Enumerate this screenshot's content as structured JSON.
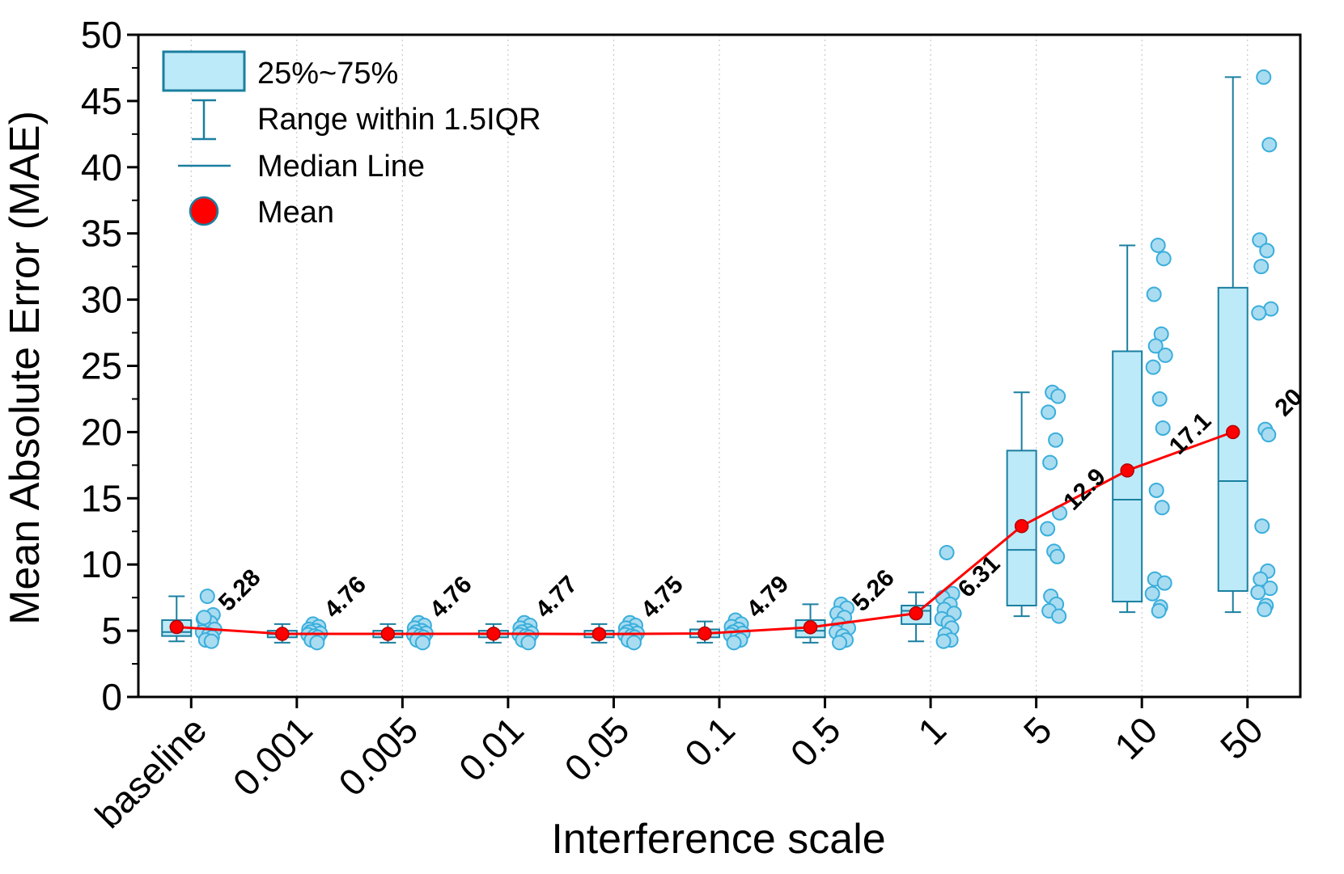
{
  "chart_data": {
    "type": "box",
    "title": "",
    "xlabel": "Interference scale",
    "ylabel": "Mean Absolute Error (MAE)",
    "ylim": [
      0,
      50
    ],
    "yticks": [
      0,
      5,
      10,
      15,
      20,
      25,
      30,
      35,
      40,
      45,
      50
    ],
    "grid": "vertical dotted lines at category ticks",
    "legend_position": "top-left",
    "legend": {
      "box": "25%~75%",
      "whisker": "Range within 1.5IQR",
      "median": "Median Line",
      "mean": "Mean"
    },
    "colors": {
      "box_fill": "#bdeaf8",
      "box_stroke": "#1a7fa0",
      "point_fill": "#a9dcf0",
      "point_stroke": "#3aaedc",
      "mean": "#ff0000",
      "mean_line": "#ff0000"
    },
    "categories": [
      {
        "label": "baseline",
        "q1": 4.6,
        "median": 4.9,
        "q3": 5.8,
        "whisker_low": 4.2,
        "whisker_high": 7.6,
        "mean": 5.28,
        "mean_label": "5.28",
        "points": [
          7.6,
          6.2,
          5.9,
          5.6,
          5.3,
          5.1,
          4.9,
          4.7,
          4.5,
          4.3,
          4.2,
          6.0
        ]
      },
      {
        "label": "0.001",
        "q1": 4.5,
        "median": 4.75,
        "q3": 5.0,
        "whisker_low": 4.1,
        "whisker_high": 5.5,
        "mean": 4.76,
        "mean_label": "4.76",
        "points": [
          5.5,
          5.3,
          5.1,
          5.0,
          4.9,
          4.8,
          4.7,
          4.6,
          4.5,
          4.3,
          4.1
        ]
      },
      {
        "label": "0.005",
        "q1": 4.5,
        "median": 4.75,
        "q3": 5.0,
        "whisker_low": 4.1,
        "whisker_high": 5.5,
        "mean": 4.76,
        "mean_label": "4.76",
        "points": [
          5.6,
          5.4,
          5.2,
          5.0,
          4.9,
          4.8,
          4.7,
          4.6,
          4.5,
          4.3,
          4.1
        ]
      },
      {
        "label": "0.01",
        "q1": 4.5,
        "median": 4.75,
        "q3": 5.0,
        "whisker_low": 4.1,
        "whisker_high": 5.5,
        "mean": 4.77,
        "mean_label": "4.77",
        "points": [
          5.6,
          5.4,
          5.2,
          5.0,
          4.9,
          4.8,
          4.7,
          4.6,
          4.5,
          4.3,
          4.1
        ]
      },
      {
        "label": "0.05",
        "q1": 4.5,
        "median": 4.75,
        "q3": 5.0,
        "whisker_low": 4.1,
        "whisker_high": 5.5,
        "mean": 4.75,
        "mean_label": "4.75",
        "points": [
          5.6,
          5.4,
          5.2,
          5.0,
          4.9,
          4.8,
          4.7,
          4.6,
          4.5,
          4.3,
          4.1
        ]
      },
      {
        "label": "0.1",
        "q1": 4.5,
        "median": 4.8,
        "q3": 5.1,
        "whisker_low": 4.1,
        "whisker_high": 5.7,
        "mean": 4.79,
        "mean_label": "4.79",
        "points": [
          5.8,
          5.5,
          5.3,
          5.1,
          4.9,
          4.8,
          4.7,
          4.5,
          4.3,
          4.1
        ]
      },
      {
        "label": "0.5",
        "q1": 4.5,
        "median": 5.0,
        "q3": 5.8,
        "whisker_low": 4.1,
        "whisker_high": 7.0,
        "mean": 5.26,
        "mean_label": "5.26",
        "points": [
          7.0,
          6.7,
          6.3,
          6.0,
          5.5,
          5.2,
          4.9,
          4.6,
          4.3,
          4.1
        ]
      },
      {
        "label": "1",
        "q1": 5.5,
        "median": 6.5,
        "q3": 6.9,
        "whisker_low": 4.2,
        "whisker_high": 7.9,
        "mean": 6.31,
        "mean_label": "6.31",
        "points": [
          10.9,
          7.8,
          7.5,
          7.0,
          6.6,
          6.3,
          5.9,
          5.6,
          5.2,
          4.7,
          4.3,
          4.2
        ]
      },
      {
        "label": "5",
        "q1": 6.9,
        "median": 11.1,
        "q3": 18.6,
        "whisker_low": 6.1,
        "whisker_high": 23.0,
        "mean": 12.9,
        "mean_label": "12.9",
        "points": [
          23.0,
          22.7,
          21.5,
          19.4,
          17.7,
          13.9,
          12.7,
          11.0,
          10.6,
          7.6,
          7.0,
          6.5,
          6.1
        ]
      },
      {
        "label": "10",
        "q1": 7.2,
        "median": 14.9,
        "q3": 26.1,
        "whisker_low": 6.4,
        "whisker_high": 34.1,
        "mean": 17.1,
        "mean_label": "17.1",
        "points": [
          34.1,
          33.1,
          30.4,
          27.4,
          26.5,
          25.8,
          24.9,
          22.5,
          20.3,
          15.6,
          14.3,
          8.9,
          8.6,
          7.8,
          6.8,
          6.5
        ]
      },
      {
        "label": "50",
        "q1": 8.0,
        "median": 16.3,
        "q3": 30.9,
        "whisker_low": 6.4,
        "whisker_high": 46.8,
        "mean": 20.0,
        "mean_label": "20",
        "points": [
          46.8,
          41.7,
          34.5,
          33.7,
          32.5,
          29.3,
          29.0,
          20.2,
          19.8,
          12.9,
          9.5,
          8.9,
          8.2,
          7.9,
          6.9,
          6.6
        ]
      }
    ]
  }
}
